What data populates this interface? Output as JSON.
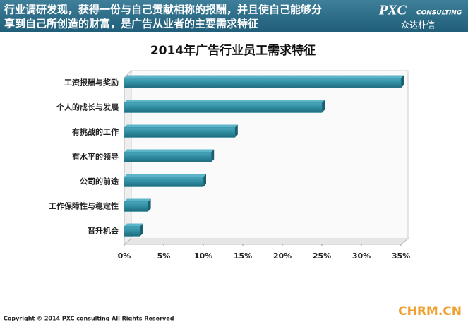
{
  "header": {
    "text_lines": [
      "行业调研发现，获得一份与自己贡献相称的报酬，并且使自己能够分",
      "享到自己所创造的财富，是广告从业者的主要需求特征"
    ],
    "logo": "PXC",
    "logo_sub": "CONSULTING",
    "logo_cn": "众达朴信"
  },
  "chart_data": {
    "type": "bar",
    "orientation": "horizontal",
    "title": "2014年广告行业员工需求特征",
    "categories": [
      "工资报酬与奖励",
      "个人的成长与发展",
      "有挑战的工作",
      "有水平的领导",
      "公司的前途",
      "工作保障性与稳定性",
      "晋升机会"
    ],
    "values": [
      35,
      25,
      14,
      11,
      10,
      3,
      2
    ],
    "color": "#2f8ba0",
    "xlim": [
      0,
      35
    ],
    "xticks": [
      {
        "value": 0,
        "label": "0%"
      },
      {
        "value": 5,
        "label": "5%"
      },
      {
        "value": 10,
        "label": "10%"
      },
      {
        "value": 15,
        "label": "15%"
      },
      {
        "value": 20,
        "label": "20%"
      },
      {
        "value": 25,
        "label": "25%"
      },
      {
        "value": 30,
        "label": "30%"
      },
      {
        "value": 35,
        "label": "35%"
      }
    ],
    "grid": false
  },
  "footer": {
    "copyright": "Copyright © 2014  PXC consulting All Rights Reserved",
    "watermark": "CHRM.CN"
  }
}
